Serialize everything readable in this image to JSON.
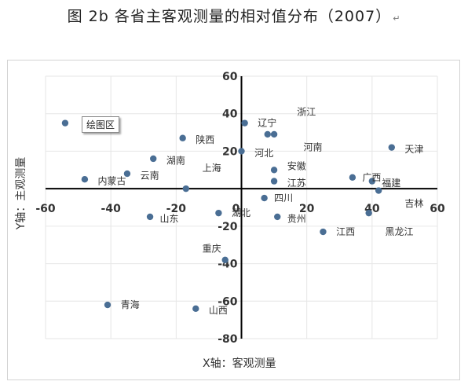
{
  "title": "图 2b  各省主客观测量的相对值分布（2007）",
  "return_mark": "↵",
  "plot_area_label": "绘图区",
  "chart_data": {
    "type": "scatter",
    "xlabel": "X轴：客观测量",
    "ylabel": "Y轴：主观测量",
    "xlim": [
      -60,
      60
    ],
    "ylim": [
      -80,
      60
    ],
    "x_ticks": [
      "-60",
      "-40",
      "-20",
      "0",
      "20",
      "40",
      "60"
    ],
    "y_ticks": [
      "60",
      "40",
      "20",
      "0",
      "-20",
      "-40",
      "-60",
      "-80"
    ],
    "grid": true,
    "marker_color": "#4a6e94",
    "points": [
      {
        "x": -54,
        "y": 35
      },
      {
        "x": -48,
        "y": 5
      },
      {
        "x": -35,
        "y": 8
      },
      {
        "x": -28,
        "y": -15
      },
      {
        "x": -27,
        "y": 16
      },
      {
        "x": -18,
        "y": 27
      },
      {
        "x": -17,
        "y": 0
      },
      {
        "x": -14,
        "y": -64
      },
      {
        "x": -7,
        "y": -13
      },
      {
        "x": -5,
        "y": -38
      },
      {
        "x": 0,
        "y": 20
      },
      {
        "x": 1,
        "y": 35
      },
      {
        "x": 7,
        "y": -5
      },
      {
        "x": 8,
        "y": 29
      },
      {
        "x": 10,
        "y": 29
      },
      {
        "x": 10,
        "y": 10
      },
      {
        "x": 10,
        "y": 4
      },
      {
        "x": 11,
        "y": -15
      },
      {
        "x": 25,
        "y": -23
      },
      {
        "x": 34,
        "y": 6
      },
      {
        "x": 39,
        "y": -13
      },
      {
        "x": 40,
        "y": 4
      },
      {
        "x": 42,
        "y": -1
      },
      {
        "x": 46,
        "y": 22
      },
      {
        "x": -41,
        "y": -62
      }
    ],
    "annotations": [
      {
        "text": "浙江",
        "x": 17,
        "y": 41
      },
      {
        "text": "辽宁",
        "x": 5,
        "y": 35
      },
      {
        "text": "陕西",
        "x": -14,
        "y": 26
      },
      {
        "text": "河南",
        "x": 19,
        "y": 22
      },
      {
        "text": "天津",
        "x": 50,
        "y": 21
      },
      {
        "text": "河北",
        "x": 4,
        "y": 19
      },
      {
        "text": "湖南",
        "x": -23,
        "y": 15
      },
      {
        "text": "上海",
        "x": -12,
        "y": 11
      },
      {
        "text": "安徽",
        "x": 14,
        "y": 12
      },
      {
        "text": "云南",
        "x": -31,
        "y": 7
      },
      {
        "text": "内蒙古",
        "x": -44,
        "y": 4
      },
      {
        "text": "广西",
        "x": 37,
        "y": 6
      },
      {
        "text": "江苏",
        "x": 14,
        "y": 3
      },
      {
        "text": "福建",
        "x": 43,
        "y": 3
      },
      {
        "text": "四川",
        "x": 10,
        "y": -5
      },
      {
        "text": "吉林",
        "x": 50,
        "y": -8
      },
      {
        "text": "湖北",
        "x": -3,
        "y": -13
      },
      {
        "text": "山东",
        "x": -25,
        "y": -16
      },
      {
        "text": "贵州",
        "x": 14,
        "y": -16
      },
      {
        "text": "江西",
        "x": 29,
        "y": -23
      },
      {
        "text": "黑龙江",
        "x": 44,
        "y": -23
      },
      {
        "text": "重庆",
        "x": -12,
        "y": -32
      },
      {
        "text": "青海",
        "x": -37,
        "y": -62
      },
      {
        "text": "山西",
        "x": -10,
        "y": -65
      }
    ]
  }
}
